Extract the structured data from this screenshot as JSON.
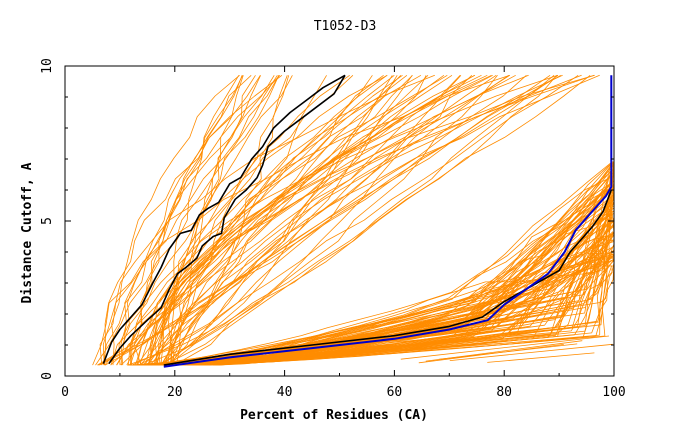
{
  "chart_data": {
    "type": "line",
    "title": "T1052-D3",
    "xlabel": "Percent of Residues (CA)",
    "ylabel": "Distance Cutoff, A",
    "xlim": [
      0,
      100
    ],
    "ylim": [
      0,
      10
    ],
    "xticks": [
      0,
      20,
      40,
      60,
      80,
      100
    ],
    "yticks": [
      0,
      5,
      10
    ],
    "grid": false,
    "colors": {
      "models": "#ff8c00",
      "highlight": "#000000",
      "reference": "#0000cc"
    },
    "highlight_series": [
      {
        "x": [
          7,
          8.5,
          10,
          12,
          14,
          16,
          17.5,
          19,
          21,
          23,
          24.5,
          26,
          28,
          30,
          32,
          34,
          36,
          38,
          41,
          44,
          47,
          50,
          51
        ],
        "y": [
          0.4,
          1.1,
          1.5,
          1.9,
          2.3,
          3.0,
          3.5,
          4.1,
          4.6,
          4.7,
          5.2,
          5.4,
          5.6,
          6.2,
          6.4,
          7.0,
          7.4,
          8.0,
          8.5,
          8.9,
          9.3,
          9.6,
          9.7
        ]
      },
      {
        "x": [
          8,
          10,
          12,
          15,
          17.5,
          19,
          20.5,
          22,
          24,
          25,
          27,
          28.5,
          29,
          30,
          31,
          33,
          35,
          36,
          37,
          40,
          43,
          46,
          49,
          51
        ],
        "y": [
          0.4,
          0.9,
          1.3,
          1.8,
          2.2,
          2.8,
          3.3,
          3.5,
          3.8,
          4.2,
          4.5,
          4.6,
          5.1,
          5.4,
          5.7,
          6.0,
          6.4,
          6.8,
          7.4,
          7.9,
          8.3,
          8.7,
          9.1,
          9.7
        ]
      },
      {
        "x": [
          18,
          30,
          45,
          60,
          70,
          76,
          80,
          85,
          90,
          92,
          94,
          96,
          98,
          99.5
        ],
        "y": [
          0.35,
          0.7,
          1.0,
          1.3,
          1.6,
          1.9,
          2.4,
          2.9,
          3.4,
          4.0,
          4.4,
          4.8,
          5.3,
          6.0
        ]
      }
    ],
    "reference_series": {
      "x": [
        18,
        30,
        45,
        60,
        70,
        77,
        80,
        84,
        88,
        91,
        93,
        95,
        97,
        98.5,
        99.5,
        99.5
      ],
      "y": [
        0.3,
        0.6,
        0.9,
        1.2,
        1.5,
        1.8,
        2.3,
        2.8,
        3.3,
        4.0,
        4.7,
        5.1,
        5.5,
        5.8,
        6.1,
        9.7
      ]
    }
  }
}
